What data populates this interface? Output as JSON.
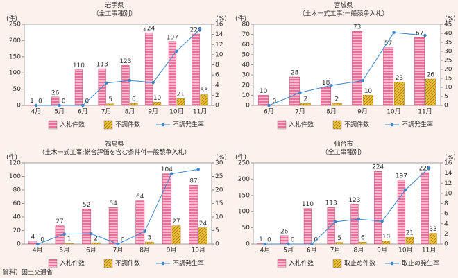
{
  "chart_data": [
    {
      "type": "bar",
      "title": "岩手県",
      "subtitle": "（全工事種別）",
      "y_unit": "(件)",
      "y2_unit": "(%)",
      "categories": [
        "4月",
        "5月",
        "6月",
        "7月",
        "8月",
        "9月",
        "10月",
        "11月"
      ],
      "series": [
        {
          "name": "入札件数",
          "color": "#e8709a",
          "values": [
            1,
            26,
            110,
            113,
            123,
            224,
            197,
            220
          ]
        },
        {
          "name": "不調件数",
          "color": "#f2c33a",
          "values": [
            0,
            0,
            0,
            5,
            6,
            10,
            21,
            33
          ]
        },
        {
          "name": "不調発生率",
          "color": "#3a86c8",
          "axis": "y2",
          "values": [
            0,
            0,
            0,
            4.4,
            4.9,
            4.5,
            10.7,
            15.0
          ]
        }
      ],
      "ylim": [
        0,
        250
      ],
      "yticks": [
        0,
        50,
        100,
        150,
        200,
        250
      ],
      "y2lim": [
        0,
        16
      ],
      "y2ticks": [
        0,
        2,
        4,
        6,
        8,
        10,
        12,
        14,
        16
      ]
    },
    {
      "type": "bar",
      "title": "宮城県",
      "subtitle": "（土木一式工事:一般競争入札）",
      "y_unit": "(件)",
      "y2_unit": "(%)",
      "categories": [
        "6月",
        "7月",
        "8月",
        "9月",
        "10月",
        "11月"
      ],
      "series": [
        {
          "name": "入札件数",
          "color": "#e8709a",
          "values": [
            10,
            28,
            18,
            73,
            57,
            67
          ]
        },
        {
          "name": "不調件数",
          "color": "#f2c33a",
          "values": [
            0,
            2,
            2,
            10,
            23,
            26
          ]
        },
        {
          "name": "不調発生率",
          "color": "#3a86c8",
          "axis": "y2",
          "values": [
            0,
            7.1,
            11.1,
            13.7,
            40.4,
            38.8
          ]
        }
      ],
      "ylim": [
        0,
        80
      ],
      "yticks": [
        0,
        10,
        20,
        30,
        40,
        50,
        60,
        70,
        80
      ],
      "y2lim": [
        0,
        45
      ],
      "y2ticks": [
        0,
        5,
        10,
        15,
        20,
        25,
        30,
        35,
        40,
        45
      ]
    },
    {
      "type": "bar",
      "title": "福島県",
      "subtitle": "（土木一式工事:総合評価を含む条件付一般競争入札）",
      "y_unit": "(件)",
      "y2_unit": "(%)",
      "categories": [
        "4月",
        "5月",
        "6月",
        "7月",
        "8月",
        "9月",
        "10月"
      ],
      "series": [
        {
          "name": "入札件数",
          "color": "#e8709a",
          "values": [
            4,
            27,
            52,
            54,
            64,
            104,
            87
          ]
        },
        {
          "name": "不調件数",
          "color": "#f2c33a",
          "values": [
            0,
            1,
            2,
            0,
            3,
            27,
            24
          ]
        },
        {
          "name": "不調発生率",
          "color": "#3a86c8",
          "axis": "y2",
          "values": [
            0,
            3.7,
            3.8,
            0,
            4.7,
            26.0,
            27.6
          ]
        }
      ],
      "ylim": [
        0,
        120
      ],
      "yticks": [
        0,
        20,
        40,
        60,
        80,
        100,
        120
      ],
      "y2lim": [
        0,
        30
      ],
      "y2ticks": [
        0,
        5,
        10,
        15,
        20,
        25,
        30
      ]
    },
    {
      "type": "bar",
      "title": "仙台市",
      "subtitle": "（全工事種別）",
      "y_unit": "(件)",
      "y2_unit": "(%)",
      "categories": [
        "4月",
        "5月",
        "6月",
        "7月",
        "8月",
        "9月",
        "10月",
        "11月"
      ],
      "series": [
        {
          "name": "入札件数",
          "color": "#e8709a",
          "values": [
            1,
            26,
            110,
            113,
            123,
            224,
            197,
            220
          ]
        },
        {
          "name": "取止め件数",
          "color": "#f2c33a",
          "values": [
            0,
            0,
            0,
            5,
            6,
            10,
            21,
            33
          ]
        },
        {
          "name": "取止め発生率",
          "color": "#3a86c8",
          "axis": "y2",
          "values": [
            0,
            0,
            0,
            4.4,
            4.9,
            4.5,
            10.7,
            15.0
          ]
        }
      ],
      "ylim": [
        0,
        250
      ],
      "yticks": [
        0,
        50,
        100,
        150,
        200,
        250
      ],
      "y2lim": [
        0,
        16
      ],
      "y2ticks": [
        0,
        2,
        4,
        6,
        8,
        10,
        12,
        14,
        16
      ]
    }
  ],
  "source": "資料）国土交通省"
}
